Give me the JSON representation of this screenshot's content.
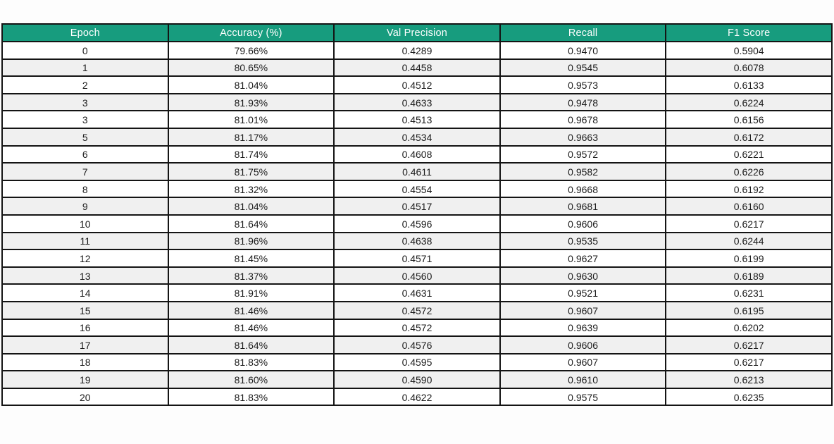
{
  "colors": {
    "accent": "#179C7E",
    "header_text": "#FFFFFF",
    "row_alt": "#F0F0F0",
    "border": "#141414",
    "page_background": "#FDFDFD"
  },
  "chart_data": {
    "type": "table",
    "columns": [
      "Epoch",
      "Accuracy (%)",
      "Val Precision",
      "Recall",
      "F1 Score"
    ],
    "rows": [
      [
        "0",
        "79.66%",
        "0.4289",
        "0.9470",
        "0.5904"
      ],
      [
        "1",
        "80.65%",
        "0.4458",
        "0.9545",
        "0.6078"
      ],
      [
        "2",
        "81.04%",
        "0.4512",
        "0.9573",
        "0.6133"
      ],
      [
        "3",
        "81.93%",
        "0.4633",
        "0.9478",
        "0.6224"
      ],
      [
        "3",
        "81.01%",
        "0.4513",
        "0.9678",
        "0.6156"
      ],
      [
        "5",
        "81.17%",
        "0.4534",
        "0.9663",
        "0.6172"
      ],
      [
        "6",
        "81.74%",
        "0.4608",
        "0.9572",
        "0.6221"
      ],
      [
        "7",
        "81.75%",
        "0.4611",
        "0.9582",
        "0.6226"
      ],
      [
        "8",
        "81.32%",
        "0.4554",
        "0.9668",
        "0.6192"
      ],
      [
        "9",
        "81.04%",
        "0.4517",
        "0.9681",
        "0.6160"
      ],
      [
        "10",
        "81.64%",
        "0.4596",
        "0.9606",
        "0.6217"
      ],
      [
        "11",
        "81.96%",
        "0.4638",
        "0.9535",
        "0.6244"
      ],
      [
        "12",
        "81.45%",
        "0.4571",
        "0.9627",
        "0.6199"
      ],
      [
        "13",
        "81.37%",
        "0.4560",
        "0.9630",
        "0.6189"
      ],
      [
        "14",
        "81.91%",
        "0.4631",
        "0.9521",
        "0.6231"
      ],
      [
        "15",
        "81.46%",
        "0.4572",
        "0.9607",
        "0.6195"
      ],
      [
        "16",
        "81.46%",
        "0.4572",
        "0.9639",
        "0.6202"
      ],
      [
        "17",
        "81.64%",
        "0.4576",
        "0.9606",
        "0.6217"
      ],
      [
        "18",
        "81.83%",
        "0.4595",
        "0.9607",
        "0.6217"
      ],
      [
        "19",
        "81.60%",
        "0.4590",
        "0.9610",
        "0.6213"
      ],
      [
        "20",
        "81.83%",
        "0.4622",
        "0.9575",
        "0.6235"
      ]
    ]
  }
}
